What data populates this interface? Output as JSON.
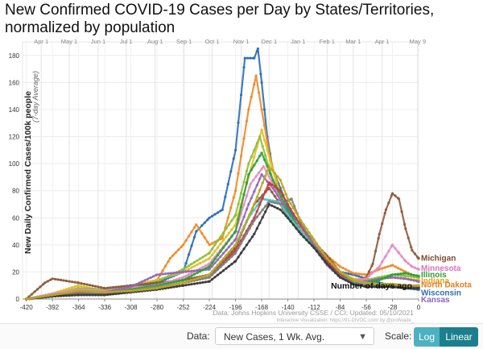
{
  "title": "New Confirmed COVID-19 Cases per Day by States/Territories, normalized by population",
  "controls": {
    "data_label": "Data:",
    "data_value": "New Cases, 1 Wk. Avg.",
    "scale_label": "Scale:",
    "log_label": "Log",
    "linear_label": "Linear"
  },
  "chart_data": {
    "type": "line",
    "ylabel": "New Daily Confirmed Cases/100k people",
    "ylabel_sub": "(7-day Average)",
    "xlabel": "Number of days ago",
    "xlim": [
      -424,
      0
    ],
    "ylim": [
      0,
      190
    ],
    "x_ticks": [
      -420,
      -392,
      -364,
      -336,
      -308,
      -280,
      -252,
      -224,
      -196,
      -168,
      -140,
      -112,
      -84,
      -56,
      -28,
      0
    ],
    "y_ticks": [
      0,
      20,
      40,
      60,
      80,
      100,
      120,
      140,
      160,
      180
    ],
    "month_markers": [
      {
        "label": "Apr 1",
        "x": -404
      },
      {
        "label": "May 1",
        "x": -374
      },
      {
        "label": "Jun 1",
        "x": -343
      },
      {
        "label": "Jul 1",
        "x": -313
      },
      {
        "label": "Aug 1",
        "x": -282
      },
      {
        "label": "Sep 1",
        "x": -251
      },
      {
        "label": "Oct 1",
        "x": -221
      },
      {
        "label": "Nov 1",
        "x": -190
      },
      {
        "label": "Dec 1",
        "x": -160
      },
      {
        "label": "Jan 1",
        "x": -129
      },
      {
        "label": "Feb 1",
        "x": -98
      },
      {
        "label": "Mar 1",
        "x": -70
      },
      {
        "label": "Apr 1",
        "x": -39
      },
      {
        "label": "May 9",
        "x": -1
      }
    ],
    "credit": "Data: Johns Hopkins University CSSE / CCI; Updated: 05/10/2021",
    "credit_sub": "Interactive Visualization: https://91-DIVOC.com/ by @profwade_",
    "grid": true,
    "series": [
      {
        "name": "",
        "color": "#2a6fb5",
        "x": [
          -420,
          -392,
          -364,
          -336,
          -308,
          -280,
          -252,
          -238,
          -224,
          -210,
          -196,
          -186,
          -176,
          -172,
          -168,
          -162,
          -156,
          -148,
          -140,
          -126,
          -112,
          -98,
          -84,
          -70,
          -56,
          -42,
          -28,
          -14,
          0
        ],
        "y": [
          0,
          2,
          5,
          4,
          8,
          12,
          20,
          50,
          60,
          66,
          110,
          178,
          178,
          185,
          160,
          120,
          95,
          82,
          68,
          52,
          38,
          26,
          20,
          18,
          15,
          12,
          10,
          8,
          7
        ]
      },
      {
        "name": "",
        "color": "#ef8a24",
        "x": [
          -420,
          -392,
          -364,
          -336,
          -308,
          -280,
          -266,
          -252,
          -238,
          -224,
          -210,
          -196,
          -182,
          -174,
          -168,
          -160,
          -150,
          -140,
          -126,
          -112,
          -98,
          -84,
          -70,
          -56,
          -42,
          -28,
          -14,
          0
        ],
        "y": [
          0,
          3,
          8,
          6,
          10,
          14,
          30,
          40,
          55,
          40,
          45,
          80,
          140,
          165,
          140,
          108,
          80,
          62,
          52,
          42,
          32,
          24,
          19,
          18,
          22,
          25,
          20,
          16
        ]
      },
      {
        "name": "",
        "color": "#e1c025",
        "x": [
          -420,
          -392,
          -364,
          -336,
          -308,
          -280,
          -252,
          -224,
          -196,
          -182,
          -168,
          -158,
          -148,
          -140,
          -126,
          -112,
          -98,
          -84,
          -70,
          -56,
          -42,
          -28,
          -14,
          0
        ],
        "y": [
          0,
          4,
          10,
          6,
          10,
          14,
          20,
          30,
          55,
          90,
          125,
          100,
          78,
          60,
          48,
          38,
          28,
          20,
          15,
          14,
          15,
          16,
          15,
          14
        ]
      },
      {
        "name": "",
        "color": "#8fbf3a",
        "x": [
          -420,
          -392,
          -364,
          -336,
          -308,
          -280,
          -252,
          -224,
          -196,
          -182,
          -170,
          -158,
          -148,
          -140,
          -126,
          -112,
          -98,
          -84,
          -70,
          -56,
          -42,
          -28,
          -14,
          0
        ],
        "y": [
          0,
          3,
          8,
          7,
          9,
          13,
          22,
          34,
          62,
          100,
          120,
          92,
          74,
          60,
          48,
          38,
          26,
          18,
          14,
          14,
          16,
          18,
          17,
          16
        ]
      },
      {
        "name": "",
        "color": "#8e5a3c",
        "x": [
          -420,
          -400,
          -392,
          -364,
          -336,
          -308,
          -280,
          -252,
          -224,
          -196,
          -176,
          -160,
          -148,
          -140,
          -126,
          -112,
          -98,
          -84,
          -70,
          -56,
          -49,
          -42,
          -35,
          -28,
          -21,
          -14,
          -7,
          0
        ],
        "y": [
          0,
          12,
          15,
          12,
          8,
          10,
          12,
          14,
          18,
          38,
          70,
          82,
          70,
          60,
          54,
          42,
          32,
          20,
          13,
          16,
          26,
          48,
          66,
          78,
          74,
          52,
          36,
          30
        ]
      },
      {
        "name": "",
        "color": "#e58cc4",
        "x": [
          -420,
          -392,
          -364,
          -336,
          -308,
          -280,
          -252,
          -224,
          -196,
          -180,
          -166,
          -152,
          -140,
          -126,
          -112,
          -98,
          -84,
          -70,
          -56,
          -42,
          -35,
          -28,
          -21,
          -14,
          -7,
          0
        ],
        "y": [
          0,
          4,
          7,
          6,
          8,
          10,
          16,
          26,
          50,
          85,
          98,
          80,
          65,
          52,
          42,
          30,
          20,
          14,
          15,
          24,
          32,
          40,
          34,
          28,
          24,
          22
        ]
      },
      {
        "name": "",
        "color": "#9467bd",
        "x": [
          -420,
          -392,
          -364,
          -336,
          -308,
          -280,
          -252,
          -224,
          -196,
          -182,
          -168,
          -154,
          -140,
          -126,
          -112,
          -98,
          -84,
          -70,
          -56,
          -42,
          -28,
          -14,
          0
        ],
        "y": [
          0,
          2,
          6,
          5,
          9,
          18,
          20,
          22,
          44,
          70,
          92,
          80,
          64,
          50,
          38,
          25,
          16,
          12,
          13,
          15,
          16,
          15,
          13
        ]
      },
      {
        "name": "",
        "color": "#2fa03a",
        "x": [
          -420,
          -392,
          -364,
          -336,
          -308,
          -280,
          -252,
          -224,
          -196,
          -182,
          -168,
          -156,
          -140,
          -126,
          -112,
          -98,
          -84,
          -70,
          -56,
          -42,
          -28,
          -14,
          0
        ],
        "y": [
          0,
          2,
          5,
          4,
          7,
          10,
          14,
          24,
          50,
          92,
          108,
          88,
          66,
          50,
          38,
          26,
          17,
          13,
          12,
          14,
          18,
          19,
          17
        ]
      },
      {
        "name": "",
        "color": "#4dc7cf",
        "x": [
          -420,
          -392,
          -364,
          -336,
          -308,
          -280,
          -252,
          -224,
          -196,
          -182,
          -168,
          -150,
          -140,
          -126,
          -112,
          -98,
          -84,
          -70,
          -56,
          -42,
          -28,
          -14,
          0
        ],
        "y": [
          0,
          2,
          4,
          4,
          6,
          9,
          12,
          18,
          40,
          60,
          74,
          72,
          62,
          50,
          40,
          28,
          18,
          13,
          12,
          11,
          11,
          10,
          9
        ]
      },
      {
        "name": "",
        "color": "#c43c3c",
        "x": [
          -420,
          -392,
          -364,
          -336,
          -308,
          -280,
          -252,
          -224,
          -196,
          -176,
          -160,
          -148,
          -140,
          -126,
          -112,
          -98,
          -84,
          -70,
          -56,
          -42,
          -28,
          -14,
          0
        ],
        "y": [
          0,
          2,
          5,
          4,
          6,
          8,
          12,
          16,
          36,
          60,
          86,
          80,
          70,
          54,
          40,
          28,
          18,
          12,
          10,
          10,
          11,
          10,
          9
        ]
      },
      {
        "name": "",
        "color": "#7f7f7f",
        "x": [
          -420,
          -392,
          -364,
          -336,
          -308,
          -280,
          -252,
          -224,
          -196,
          -176,
          -160,
          -146,
          -136,
          -126,
          -112,
          -98,
          -84,
          -70,
          -56,
          -42,
          -28,
          -14,
          0
        ],
        "y": [
          0,
          2,
          4,
          4,
          6,
          9,
          12,
          16,
          34,
          58,
          72,
          70,
          74,
          56,
          40,
          26,
          17,
          12,
          10,
          10,
          10,
          9,
          9
        ]
      },
      {
        "name": "",
        "color": "#3b3b3b",
        "x": [
          -420,
          -392,
          -364,
          -336,
          -308,
          -280,
          -252,
          -224,
          -196,
          -176,
          -160,
          -148,
          -140,
          -126,
          -112,
          -98,
          -84,
          -70,
          -56,
          -42,
          -28,
          -14,
          0
        ],
        "y": [
          0,
          2,
          3,
          3,
          5,
          7,
          10,
          13,
          28,
          48,
          70,
          66,
          60,
          48,
          38,
          26,
          16,
          11,
          9,
          9,
          9,
          8,
          8
        ]
      },
      {
        "name": "",
        "color": "#b8a81c",
        "x": [
          -420,
          -392,
          -364,
          -336,
          -308,
          -280,
          -252,
          -224,
          -196,
          -176,
          -160,
          -148,
          -140,
          -126,
          -112,
          -98,
          -84,
          -70,
          -56,
          -42,
          -28,
          -14,
          0
        ],
        "y": [
          0,
          3,
          6,
          5,
          6,
          8,
          12,
          18,
          40,
          70,
          98,
          88,
          74,
          58,
          44,
          30,
          20,
          14,
          12,
          11,
          11,
          10,
          10
        ]
      }
    ],
    "labels": [
      {
        "text": "Michigan",
        "color": "#7a4a30",
        "y": 30
      },
      {
        "text": "Minnesota",
        "color": "#e06fbf",
        "y": 22.5
      },
      {
        "text": "Illinois",
        "color": "#2e9e37",
        "y": 18
      },
      {
        "text": "Indiana",
        "color": "#e8a020",
        "y": 13.5
      },
      {
        "text": "North Dakota",
        "color": "#e27d1c",
        "y": 10.5
      },
      {
        "text": "Wisconsin",
        "color": "#2a6fb5",
        "y": 4.5
      },
      {
        "text": "Kansas",
        "color": "#8e62c0",
        "y": -0.5
      }
    ]
  }
}
